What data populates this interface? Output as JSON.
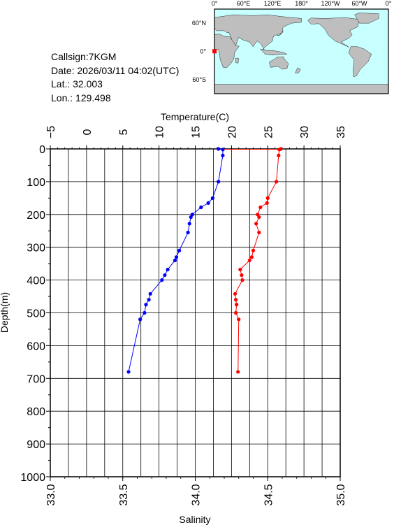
{
  "station": {
    "callsign": "Callsign:7KGM",
    "date": "Date:  2026/03/11 04:02(UTC)",
    "lat": "Lat.:   32.003",
    "lon": "Lon.:  129.498"
  },
  "map": {
    "top_labels": [
      "0°",
      "60°E",
      "120°E",
      "180°",
      "120°W",
      "60°W",
      "0°"
    ],
    "right_labels": [
      "60°N",
      "0°",
      "60°S"
    ],
    "ocean_color": "#c8ffff",
    "land_color": "#bebebe",
    "marker_color": "#ff0000"
  },
  "chart_data": {
    "type": "line",
    "depth_axis": {
      "label": "Depth(m)",
      "range": [
        0,
        1000
      ],
      "ticks": [
        "0",
        "100",
        "200",
        "300",
        "400",
        "500",
        "600",
        "700",
        "800",
        "900",
        "1000"
      ]
    },
    "temperature_axis": {
      "label": "Temperature(C)",
      "range": [
        -5,
        35
      ],
      "ticks": [
        "−5",
        "0",
        "5",
        "10",
        "15",
        "20",
        "25",
        "30",
        "35"
      ],
      "color": "#ff0000"
    },
    "salinity_axis": {
      "label": "Salinity",
      "range": [
        33.0,
        35.0
      ],
      "ticks": [
        "33.0",
        "33.5",
        "34.0",
        "34.5",
        "35.0"
      ],
      "color": "#0000ff"
    },
    "grid": true,
    "temperature": [
      {
        "depth": 0,
        "value": 26.8
      },
      {
        "depth": 2,
        "value": 26.6
      },
      {
        "depth": 20,
        "value": 26.5
      },
      {
        "depth": 100,
        "value": 26.2
      },
      {
        "depth": 150,
        "value": 25.0
      },
      {
        "depth": 165,
        "value": 24.9
      },
      {
        "depth": 178,
        "value": 24.0
      },
      {
        "depth": 200,
        "value": 23.6
      },
      {
        "depth": 208,
        "value": 23.8
      },
      {
        "depth": 228,
        "value": 23.4
      },
      {
        "depth": 255,
        "value": 23.8
      },
      {
        "depth": 310,
        "value": 23.0
      },
      {
        "depth": 330,
        "value": 22.8
      },
      {
        "depth": 340,
        "value": 22.5
      },
      {
        "depth": 368,
        "value": 21.2
      },
      {
        "depth": 385,
        "value": 21.4
      },
      {
        "depth": 400,
        "value": 21.5
      },
      {
        "depth": 442,
        "value": 20.5
      },
      {
        "depth": 460,
        "value": 20.6
      },
      {
        "depth": 475,
        "value": 20.7
      },
      {
        "depth": 500,
        "value": 20.6
      },
      {
        "depth": 520,
        "value": 21.0
      },
      {
        "depth": 680,
        "value": 20.9
      }
    ],
    "salinity": [
      {
        "depth": 0,
        "value": 34.16
      },
      {
        "depth": 2,
        "value": 34.19
      },
      {
        "depth": 20,
        "value": 34.19
      },
      {
        "depth": 100,
        "value": 34.16
      },
      {
        "depth": 150,
        "value": 34.12
      },
      {
        "depth": 165,
        "value": 34.09
      },
      {
        "depth": 178,
        "value": 34.04
      },
      {
        "depth": 200,
        "value": 33.98
      },
      {
        "depth": 208,
        "value": 33.97
      },
      {
        "depth": 228,
        "value": 33.96
      },
      {
        "depth": 255,
        "value": 33.95
      },
      {
        "depth": 310,
        "value": 33.89
      },
      {
        "depth": 330,
        "value": 33.87
      },
      {
        "depth": 340,
        "value": 33.86
      },
      {
        "depth": 368,
        "value": 33.81
      },
      {
        "depth": 385,
        "value": 33.79
      },
      {
        "depth": 400,
        "value": 33.77
      },
      {
        "depth": 442,
        "value": 33.69
      },
      {
        "depth": 460,
        "value": 33.68
      },
      {
        "depth": 475,
        "value": 33.66
      },
      {
        "depth": 500,
        "value": 33.65
      },
      {
        "depth": 520,
        "value": 33.62
      },
      {
        "depth": 680,
        "value": 33.54
      }
    ]
  }
}
